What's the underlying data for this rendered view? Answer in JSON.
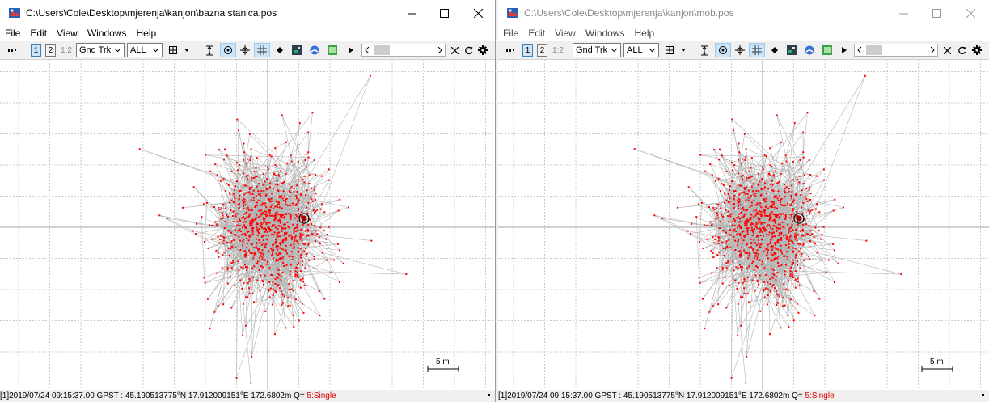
{
  "windows": [
    {
      "id": "left",
      "title": "C:\\Users\\Cole\\Desktop\\mjerenja\\kanjon\\bazna stanica.pos",
      "menu": [
        "File",
        "Edit",
        "View",
        "Windows",
        "Help"
      ],
      "toolbar": {
        "btn1": "1",
        "btn2": "2",
        "btn12": "1:2",
        "plot_type": "Gnd Trk",
        "quality": "ALL"
      },
      "scale_label": "5 m",
      "status": {
        "prefix": "[1]2019/07/24 09:15:37.00 GPST : 45.190513775°N   17.912009151°E  172.6802m  Q= ",
        "quality": "5:Single"
      }
    },
    {
      "id": "right",
      "title": "C:\\Users\\Cole\\Desktop\\mjerenja\\kanjon\\mob.pos",
      "menu": [
        "File",
        "Edit",
        "View",
        "Windows",
        "Help"
      ],
      "toolbar": {
        "btn1": "1",
        "btn2": "2",
        "btn12": "1:2",
        "plot_type": "Gnd Trk",
        "quality": "ALL"
      },
      "scale_label": "5 m",
      "status": {
        "prefix": "[1]2019/07/24 09:15:37.00 GPST : 45.190513775°N   17.912009151°E  172.6802m  Q= ",
        "quality": "5:Single"
      }
    }
  ],
  "colors": {
    "point": "#ff0000",
    "track": "#b4b4b4",
    "grid": "#c8c8c8",
    "axis": "#a0a0a0",
    "selection": "#cce4f7"
  },
  "icons": [
    "pin-icon",
    "plus-axes-icon",
    "dropdown-arrow-icon",
    "fit-height-icon",
    "center-origin-icon",
    "crosshair-icon",
    "grid-icon",
    "point-icon",
    "map-icon",
    "sky-icon",
    "layers-icon",
    "play-icon",
    "close-icon",
    "reload-icon",
    "settings-icon"
  ]
}
